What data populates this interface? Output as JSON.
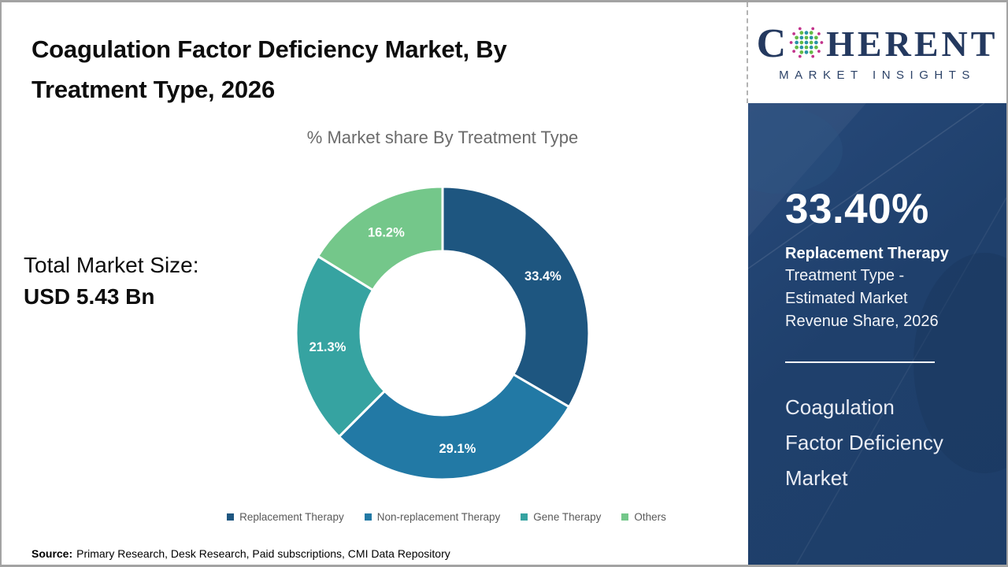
{
  "slide": {
    "title_lines": [
      "Coagulation Factor Deficiency Market, By",
      "Treatment Type, 2026"
    ],
    "subtitle": "% Market share By Treatment Type",
    "total_market_label": "Total Market Size:",
    "total_market_value": "USD 5.43 Bn",
    "source_label": "Source:",
    "source_text": "Primary Research, Desk Research, Paid subscriptions, CMI Data Repository"
  },
  "chart_data": {
    "type": "pie",
    "subtype": "donut",
    "title": "% Market share By Treatment Type",
    "categories": [
      "Replacement Therapy",
      "Non-replacement Therapy",
      "Gene Therapy",
      "Others"
    ],
    "values": [
      33.4,
      29.1,
      21.3,
      16.2
    ],
    "labels": [
      "33.4%",
      "29.1%",
      "21.3%",
      "16.2%"
    ],
    "unit": "%",
    "colors": [
      "#1e5680",
      "#2279a5",
      "#36a3a1",
      "#74c78a"
    ],
    "start_angle_deg": 0,
    "direction": "clockwise",
    "inner_radius_ratio": 0.56,
    "legend_position": "bottom"
  },
  "logo": {
    "part1": "C",
    "part2": "HERENT",
    "line2": "MARKET INSIGHTS",
    "brand_navy": "#24395f",
    "dot_teal": "#2a93a8",
    "dot_green": "#64bb46",
    "dot_magenta": "#c2338b"
  },
  "sidebar": {
    "stat_value": "33.40%",
    "stat_label_bold": "Replacement Therapy",
    "stat_lines": [
      "Treatment Type -",
      "Estimated Market",
      "Revenue Share, 2026"
    ],
    "market_name_lines": [
      "Coagulation",
      "Factor Deficiency",
      "Market"
    ],
    "panel_color": "#1f406c"
  }
}
